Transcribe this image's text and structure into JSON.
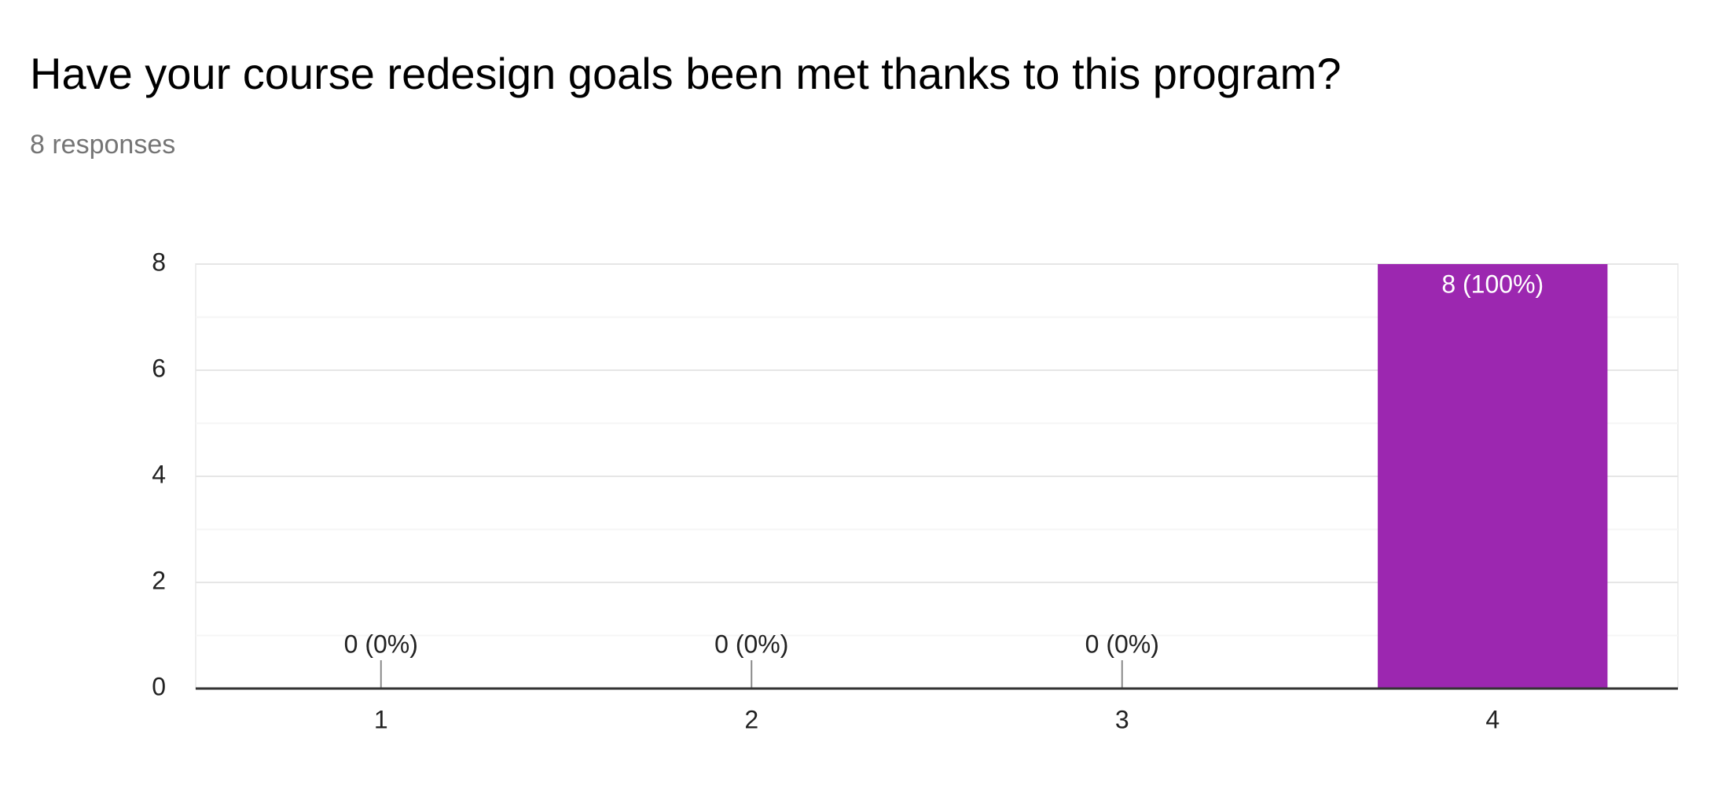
{
  "chart_data": {
    "type": "bar",
    "title": "Have your course redesign goals been met thanks to this program?",
    "subtitle": "8 responses",
    "categories": [
      "1",
      "2",
      "3",
      "4"
    ],
    "values": [
      0,
      0,
      0,
      8
    ],
    "value_labels": [
      "0 (0%)",
      "0 (0%)",
      "0 (0%)",
      "8 (100%)"
    ],
    "color": "#9c27b0",
    "ylim": [
      0,
      8
    ],
    "yticks": [
      0,
      2,
      4,
      6,
      8
    ],
    "yminor": [
      1,
      3,
      5,
      7
    ],
    "grid": true
  }
}
